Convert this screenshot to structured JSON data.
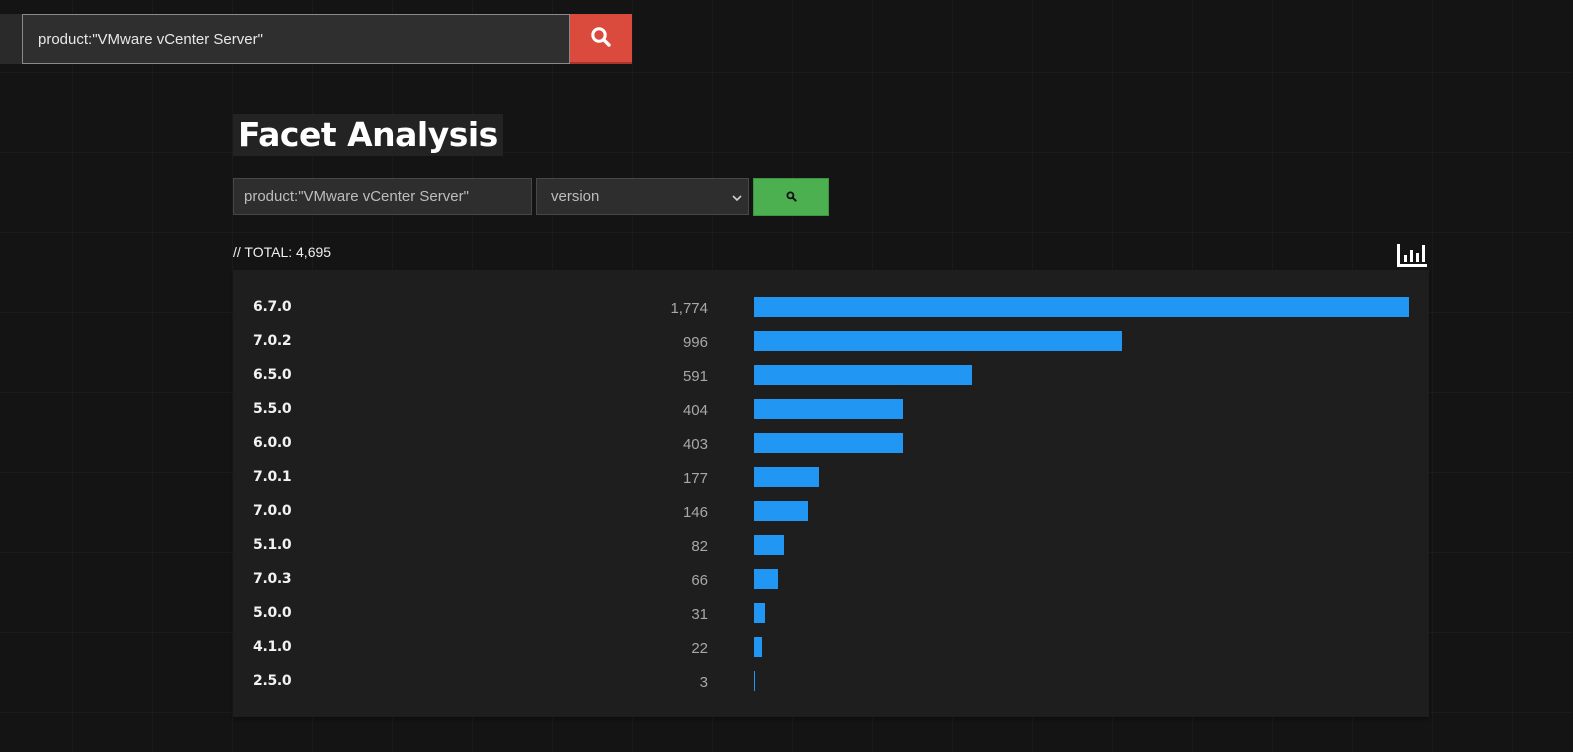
{
  "header": {
    "search_value": "product:\"VMware vCenter Server\"",
    "search_icon": "magnifier-icon"
  },
  "page": {
    "title": "Facet Analysis"
  },
  "facet_form": {
    "query_value": "product:\"VMware vCenter Server\"",
    "facet_selected": "version",
    "submit_icon": "magnifier-icon"
  },
  "results": {
    "total_label": "// TOTAL: 4,695",
    "chart_icon": "bar-chart-icon",
    "accent_color": "#2196f3"
  },
  "chart_data": {
    "type": "bar",
    "orientation": "horizontal",
    "title": "",
    "xlabel": "",
    "ylabel": "",
    "categories": [
      "6.7.0",
      "7.0.2",
      "6.5.0",
      "5.5.0",
      "6.0.0",
      "7.0.1",
      "7.0.0",
      "5.1.0",
      "7.0.3",
      "5.0.0",
      "4.1.0",
      "2.5.0"
    ],
    "values": [
      1774,
      996,
      591,
      404,
      403,
      177,
      146,
      82,
      66,
      31,
      22,
      3
    ],
    "value_labels": [
      "1,774",
      "996",
      "591",
      "404",
      "403",
      "177",
      "146",
      "82",
      "66",
      "31",
      "22",
      "3"
    ],
    "xlim": [
      0,
      1774
    ],
    "grid": false,
    "legend": "none"
  }
}
